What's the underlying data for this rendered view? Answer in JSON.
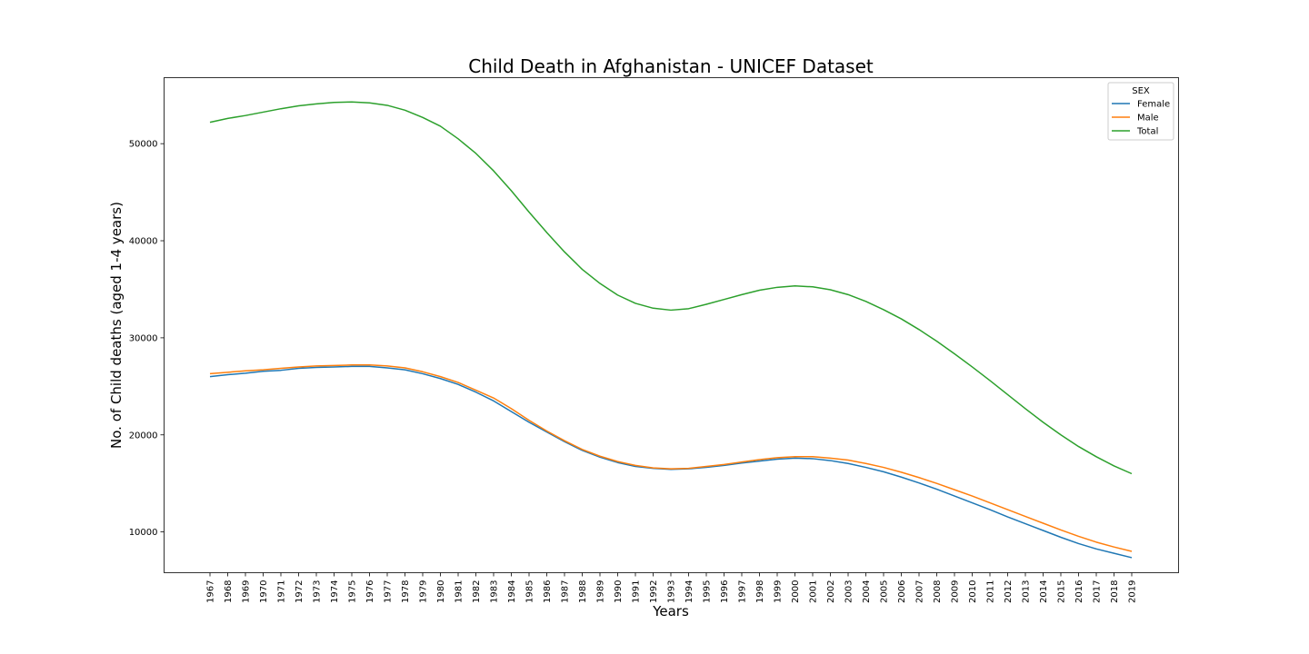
{
  "chart_data": {
    "type": "line",
    "title": "Child Death in Afghanistan -  UNICEF Dataset",
    "xlabel": "Years",
    "ylabel": "No. of Child deaths (aged 1-4 years)",
    "x": [
      "1967",
      "1968",
      "1969",
      "1970",
      "1971",
      "1972",
      "1973",
      "1974",
      "1975",
      "1976",
      "1977",
      "1978",
      "1979",
      "1980",
      "1981",
      "1982",
      "1983",
      "1984",
      "1985",
      "1986",
      "1987",
      "1988",
      "1989",
      "1990",
      "1991",
      "1992",
      "1993",
      "1994",
      "1995",
      "1996",
      "1997",
      "1998",
      "1999",
      "2000",
      "2001",
      "2002",
      "2003",
      "2004",
      "2005",
      "2006",
      "2007",
      "2008",
      "2009",
      "2010",
      "2011",
      "2012",
      "2013",
      "2014",
      "2015",
      "2016",
      "2017",
      "2018",
      "2019"
    ],
    "yticks": [
      10000,
      20000,
      30000,
      40000,
      50000
    ],
    "ylim": [
      5800,
      56800
    ],
    "grid": false,
    "legend": {
      "title": "SEX",
      "placement": "top-right"
    },
    "series": [
      {
        "name": "Female",
        "color": "#1f77b4",
        "values": [
          26000,
          26200,
          26350,
          26550,
          26650,
          26850,
          26950,
          27000,
          27050,
          27050,
          26900,
          26700,
          26300,
          25800,
          25200,
          24400,
          23500,
          22400,
          21300,
          20300,
          19300,
          18400,
          17700,
          17150,
          16750,
          16550,
          16450,
          16500,
          16650,
          16850,
          17100,
          17300,
          17500,
          17600,
          17550,
          17350,
          17050,
          16650,
          16200,
          15650,
          15050,
          14400,
          13700,
          13000,
          12300,
          11550,
          10850,
          10150,
          9450,
          8800,
          8250,
          7800,
          7350
        ]
      },
      {
        "name": "Male",
        "color": "#ff7f0e",
        "values": [
          26300,
          26450,
          26600,
          26700,
          26850,
          27000,
          27100,
          27150,
          27200,
          27200,
          27100,
          26900,
          26500,
          26000,
          25400,
          24600,
          23800,
          22700,
          21500,
          20400,
          19400,
          18500,
          17800,
          17250,
          16850,
          16600,
          16500,
          16550,
          16750,
          16950,
          17200,
          17450,
          17650,
          17750,
          17750,
          17600,
          17400,
          17050,
          16650,
          16150,
          15600,
          15000,
          14350,
          13700,
          13000,
          12300,
          11600,
          10900,
          10200,
          9550,
          8950,
          8450,
          8000
        ]
      },
      {
        "name": "Total",
        "color": "#2ca02c",
        "values": [
          52200,
          52600,
          52900,
          53250,
          53600,
          53900,
          54100,
          54250,
          54300,
          54200,
          53950,
          53450,
          52700,
          51800,
          50500,
          49000,
          47200,
          45150,
          42950,
          40850,
          38850,
          37050,
          35600,
          34400,
          33550,
          33050,
          32850,
          33000,
          33450,
          33950,
          34450,
          34900,
          35200,
          35350,
          35250,
          34950,
          34450,
          33750,
          32900,
          31950,
          30850,
          29650,
          28350,
          27000,
          25600,
          24150,
          22700,
          21300,
          20000,
          18800,
          17750,
          16800,
          16000
        ]
      }
    ]
  }
}
